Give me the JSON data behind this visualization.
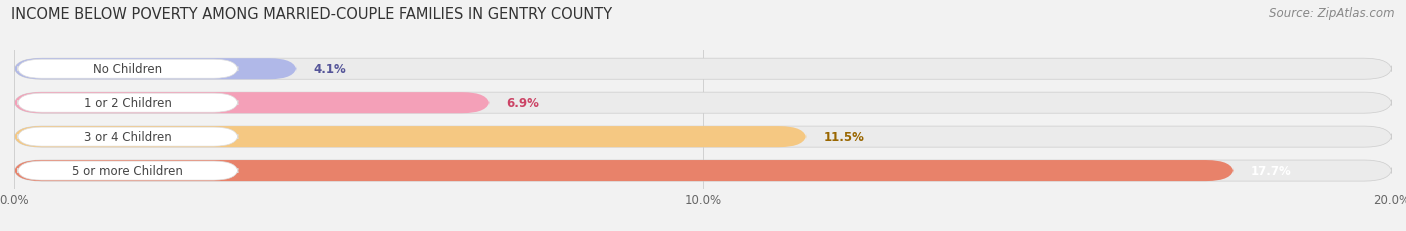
{
  "title": "INCOME BELOW POVERTY AMONG MARRIED-COUPLE FAMILIES IN GENTRY COUNTY",
  "source": "Source: ZipAtlas.com",
  "categories": [
    "No Children",
    "1 or 2 Children",
    "3 or 4 Children",
    "5 or more Children"
  ],
  "values": [
    4.1,
    6.9,
    11.5,
    17.7
  ],
  "bar_colors": [
    "#b0b8e8",
    "#f4a0b8",
    "#f5c882",
    "#e8826a"
  ],
  "value_label_colors": [
    "#555599",
    "#cc4466",
    "#996600",
    "#ffffff"
  ],
  "xlim": [
    0,
    20.0
  ],
  "xticks": [
    0.0,
    10.0,
    20.0
  ],
  "xticklabels": [
    "0.0%",
    "10.0%",
    "20.0%"
  ],
  "title_fontsize": 10.5,
  "source_fontsize": 8.5,
  "label_fontsize": 8.5,
  "value_fontsize": 8.5,
  "tick_fontsize": 8.5,
  "bar_height": 0.62,
  "background_color": "#f2f2f2",
  "bar_bg_color": "#ebebeb",
  "grid_color": "#d0d0d0",
  "label_box_color": "#ffffff",
  "label_text_color": "#444444"
}
